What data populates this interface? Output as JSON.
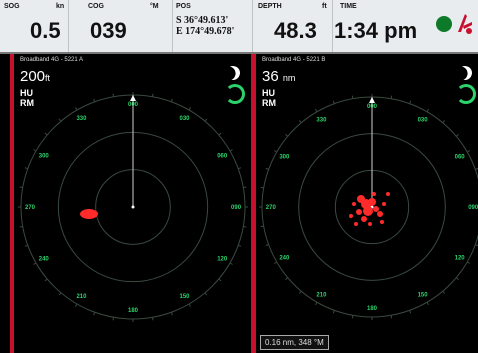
{
  "topbar": {
    "sog": {
      "label": "SOG",
      "unit": "kn",
      "value": "0.5"
    },
    "cog": {
      "label": "COG",
      "unit": "°M",
      "value": "039"
    },
    "pos": {
      "label": "POS",
      "lat": "S 36°49.613'",
      "lon": "E 174°49.678'"
    },
    "depth": {
      "label": "DEPTH",
      "unit": "ft",
      "value": "48.3"
    },
    "time": {
      "label": "TIME",
      "value": "1:34 pm"
    },
    "colors": {
      "status_dot": "#0d7a2a",
      "alarm_icon": "#c8102e"
    }
  },
  "left_panel": {
    "title": "Broadband 4G - 5221 A",
    "range_value": "200",
    "range_unit": "ft",
    "orientation": "HU",
    "motion": "RM",
    "bearing_labels": [
      "030",
      "060",
      "090",
      "120",
      "150",
      "180",
      "210",
      "240",
      "270",
      "300",
      "330",
      "000"
    ]
  },
  "right_panel": {
    "title": "Broadband 4G - 5221 B",
    "range_value": "36",
    "range_unit": "nm",
    "orientation": "HU",
    "motion": "RM",
    "cursor_readout": "0.16 nm, 348 °M",
    "bearing_labels": [
      "030",
      "060",
      "090",
      "120",
      "150",
      "180",
      "210",
      "240",
      "270",
      "300",
      "330",
      "000"
    ]
  },
  "colors": {
    "grid": "#2bd36a",
    "echo": "#ff2a2a",
    "divider": "#c8102e"
  }
}
